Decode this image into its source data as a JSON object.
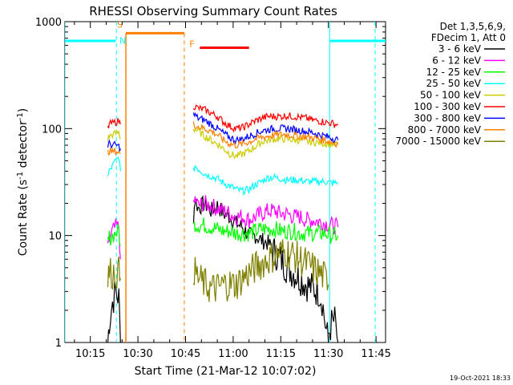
{
  "chart_data": {
    "type": "line",
    "title": "RHESSI Observing Summary Count Rates",
    "xlabel": "Start Time (21-Mar-12 10:07:02)",
    "ylabel_main": "Count Rate (s",
    "ylabel_sup1": "-1",
    "ylabel_mid": " detector",
    "ylabel_sup2": "-1",
    "ylabel_end": ")",
    "footer": "19-Oct-2021 18:33",
    "y_scale": "log",
    "ylim": [
      1,
      1000
    ],
    "xlim_minutes": [
      0,
      101
    ],
    "x_ticks": [
      {
        "min": 8,
        "label": "10:15"
      },
      {
        "min": 23,
        "label": "10:30"
      },
      {
        "min": 38,
        "label": "10:45"
      },
      {
        "min": 53,
        "label": "11:00"
      },
      {
        "min": 68,
        "label": "11:15"
      },
      {
        "min": 83,
        "label": "11:30"
      },
      {
        "min": 98,
        "label": "11:45"
      }
    ],
    "y_ticks": [
      {
        "value": 1,
        "label": "1"
      },
      {
        "value": 10,
        "label": "10"
      },
      {
        "value": 100,
        "label": "100"
      },
      {
        "value": 1000,
        "label": "1000"
      }
    ],
    "legend": {
      "header1": "Det 1,3,5,6,9,",
      "header2": "FDecim 1, Att 0",
      "placement": "right"
    },
    "series": [
      {
        "name": "3 - 6 keV",
        "color": "#000000",
        "segments": [
          {
            "t": [
              13.5,
              14,
              15,
              16,
              17,
              17.5
            ],
            "v": [
              1,
              1.6,
              2.4,
              3.0,
              2.6,
              1.0
            ]
          },
          {
            "t": [
              40.5,
              41,
              42,
              44,
              46,
              48,
              50,
              52,
              54,
              56,
              58,
              60,
              62,
              64,
              66,
              68,
              70,
              72,
              74,
              76,
              78,
              80,
              81,
              82,
              83
            ],
            "v": [
              15,
              22,
              18,
              20,
              17,
              19,
              16,
              15,
              13,
              12,
              10,
              10,
              9,
              8.5,
              7,
              6,
              5,
              4.5,
              4,
              3.5,
              3.2,
              3.0,
              2.5,
              1.5,
              1.0
            ]
          },
          {
            "t": [
              83,
              84,
              85,
              86
            ],
            "v": [
              1.2,
              1.5,
              1.6,
              1.0
            ]
          }
        ]
      },
      {
        "name": "6 - 12 keV",
        "color": "#ff00ff",
        "segments": [
          {
            "t": [
              13.5,
              14,
              15,
              16,
              17,
              17.5
            ],
            "v": [
              6,
              9,
              11,
              12,
              12,
              6
            ]
          },
          {
            "t": [
              40.5,
              41,
              42,
              44,
              46,
              48,
              50,
              52,
              54,
              56,
              58,
              60,
              62,
              64,
              66,
              68,
              70,
              72,
              74,
              76,
              78,
              80,
              82,
              84,
              86
            ],
            "v": [
              18,
              22,
              19,
              20,
              19,
              18,
              17,
              16,
              15,
              15,
              14,
              15,
              16,
              17,
              17,
              16,
              16,
              15,
              15,
              14,
              14,
              13.5,
              13,
              12.5,
              12
            ]
          }
        ]
      },
      {
        "name": "12 - 25 keV",
        "color": "#00ff00",
        "segments": [
          {
            "t": [
              13.5,
              14,
              15,
              16,
              17,
              17.5
            ],
            "v": [
              8,
              9.5,
              10,
              10.5,
              11,
              8
            ]
          },
          {
            "t": [
              40.5,
              41,
              42,
              44,
              46,
              48,
              50,
              52,
              54,
              56,
              58,
              60,
              62,
              64,
              66,
              68,
              70,
              72,
              74,
              76,
              78,
              80,
              82,
              84,
              86
            ],
            "v": [
              12,
              13,
              12.5,
              12.5,
              12,
              11.5,
              11,
              11,
              10.5,
              10.5,
              10.5,
              11,
              11.5,
              11.5,
              11.5,
              11,
              11,
              11,
              10.5,
              10.5,
              10.5,
              10.5,
              10.5,
              10,
              10
            ]
          }
        ]
      },
      {
        "name": "25 - 50 keV",
        "color": "#00ffff",
        "segments": [
          {
            "t": [
              13.5,
              14,
              15,
              16,
              17,
              17.5
            ],
            "v": [
              35,
              40,
              45,
              50,
              55,
              40
            ]
          },
          {
            "t": [
              40.5,
              41,
              42,
              44,
              46,
              48,
              50,
              52,
              54,
              56,
              58,
              60,
              62,
              64,
              66,
              68,
              70,
              72,
              74,
              76,
              78,
              80,
              82,
              84,
              86
            ],
            "v": [
              40,
              45,
              42,
              38,
              36,
              34,
              31,
              29,
              27,
              26,
              27,
              30,
              32,
              35,
              35,
              34,
              33,
              33,
              33,
              32,
              32,
              32,
              32,
              31,
              31
            ]
          }
        ]
      },
      {
        "name": "50 - 100 keV",
        "color": "#cccc00",
        "segments": [
          {
            "t": [
              13.5,
              14,
              15,
              16,
              17,
              17.5
            ],
            "v": [
              80,
              85,
              88,
              90,
              92,
              80
            ]
          },
          {
            "t": [
              40.5,
              41,
              42,
              44,
              46,
              48,
              50,
              52,
              54,
              56,
              58,
              60,
              62,
              64,
              66,
              68,
              70,
              72,
              74,
              76,
              78,
              80,
              82,
              84,
              86
            ],
            "v": [
              100,
              98,
              95,
              85,
              78,
              72,
              65,
              58,
              55,
              58,
              62,
              68,
              75,
              78,
              80,
              80,
              80,
              78,
              78,
              76,
              75,
              74,
              73,
              72,
              70
            ]
          }
        ]
      },
      {
        "name": "100 - 300 keV",
        "color": "#ff0000",
        "segments": [
          {
            "t": [
              13.5,
              14,
              15,
              16,
              17,
              17.5
            ],
            "v": [
              100,
              110,
              112,
              115,
              118,
              110
            ]
          },
          {
            "t": [
              40.5,
              41,
              42,
              44,
              46,
              48,
              50,
              52,
              54,
              56,
              58,
              60,
              62,
              64,
              66,
              68,
              70,
              72,
              74,
              76,
              78,
              80,
              82,
              84,
              86
            ],
            "v": [
              165,
              160,
              155,
              150,
              140,
              130,
              115,
              105,
              100,
              102,
              110,
              118,
              125,
              130,
              130,
              130,
              132,
              130,
              128,
              125,
              120,
              118,
              115,
              112,
              108
            ]
          }
        ]
      },
      {
        "name": "300 - 800 keV",
        "color": "#0000ff",
        "segments": [
          {
            "t": [
              13.5,
              14,
              15,
              16,
              17,
              17.5
            ],
            "v": [
              70,
              72,
              70,
              70,
              68,
              65
            ]
          },
          {
            "t": [
              40.5,
              41,
              42,
              44,
              46,
              48,
              50,
              52,
              54,
              56,
              58,
              60,
              62,
              64,
              66,
              68,
              70,
              72,
              74,
              76,
              78,
              80,
              82,
              84,
              86
            ],
            "v": [
              135,
              132,
              125,
              120,
              110,
              100,
              90,
              82,
              78,
              80,
              85,
              90,
              95,
              98,
              100,
              100,
              100,
              98,
              96,
              94,
              92,
              88,
              85,
              82,
              78
            ]
          }
        ]
      },
      {
        "name": "800 - 7000 keV",
        "color": "#ff7f00",
        "segments": [
          {
            "t": [
              13.5,
              14,
              15,
              16,
              17,
              17.5
            ],
            "v": [
              60,
              62,
              60,
              62,
              60,
              58
            ]
          },
          {
            "t": [
              40.5,
              41,
              42,
              44,
              46,
              48,
              50,
              52,
              54,
              56,
              58,
              60,
              62,
              64,
              66,
              68,
              70,
              72,
              74,
              76,
              78,
              80,
              82,
              84,
              86
            ],
            "v": [
              110,
              108,
              105,
              100,
              95,
              88,
              78,
              72,
              70,
              72,
              75,
              80,
              83,
              85,
              87,
              88,
              88,
              86,
              85,
              84,
              82,
              80,
              78,
              75,
              72
            ]
          }
        ]
      },
      {
        "name": "7000 - 15000 keV",
        "color": "#808000",
        "segments": [
          {
            "t": [
              13.5,
              14,
              15,
              16,
              17,
              17.5
            ],
            "v": [
              4,
              4.5,
              4.5,
              4.5,
              4.5,
              4
            ]
          },
          {
            "t": [
              40.5,
              41,
              42,
              44,
              46,
              48,
              50,
              52,
              54,
              56,
              58,
              60,
              62,
              64,
              66,
              68,
              70,
              72,
              74,
              76,
              78,
              80,
              82,
              83
            ],
            "v": [
              5,
              4.5,
              4,
              3.5,
              3.2,
              3.2,
              3.5,
              3.5,
              3.5,
              4,
              4.5,
              5,
              5.5,
              6,
              6.5,
              7,
              7,
              6.5,
              6,
              5.5,
              5,
              4.5,
              4,
              3.5
            ]
          }
        ]
      }
    ],
    "annotations": [
      {
        "label": "S",
        "color": "#ff7f00",
        "t": 17.3,
        "y": 880
      },
      {
        "label": "N",
        "color": "#00ffff",
        "t": 18.2,
        "y": 620
      },
      {
        "label": "F",
        "color": "#ff7f00",
        "t": 40.0,
        "y": 580
      }
    ],
    "cyan_level": 660,
    "cyan_segments": [
      [
        0,
        16
      ],
      [
        83.4,
        101
      ]
    ],
    "cyan_vertical_solid": [
      0,
      83.4
    ],
    "cyan_vertical_dashed": [
      16.2,
      97.7
    ],
    "orange_level": 780,
    "orange_segment": [
      19.2,
      37.6
    ],
    "orange_vertical_solid": [
      19.2
    ],
    "orange_vertical_dashed": [
      37.6
    ],
    "red_bar": {
      "level": 570,
      "from": 42.5,
      "to": 58.0
    }
  }
}
